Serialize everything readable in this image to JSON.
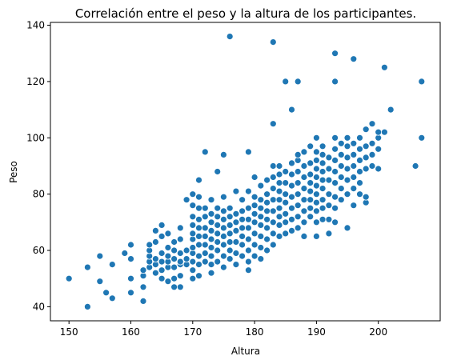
{
  "chart_data": {
    "type": "scatter",
    "title": "Correlación entre el peso y la altura de los participantes.",
    "xlabel": "Altura",
    "ylabel": "Peso",
    "xlim": [
      147,
      210
    ],
    "ylim": [
      35,
      141
    ],
    "xticks": [
      150,
      160,
      170,
      180,
      190,
      200
    ],
    "yticks": [
      40,
      60,
      80,
      100,
      120,
      140
    ],
    "grid": false,
    "marker_color": "#1f77b4",
    "points": [
      [
        150,
        50
      ],
      [
        153,
        40
      ],
      [
        153,
        54
      ],
      [
        155,
        49
      ],
      [
        155,
        58
      ],
      [
        156,
        45
      ],
      [
        157,
        43
      ],
      [
        157,
        55
      ],
      [
        159,
        59
      ],
      [
        160,
        45
      ],
      [
        160,
        50
      ],
      [
        160,
        57
      ],
      [
        160,
        62
      ],
      [
        162,
        42
      ],
      [
        162,
        47
      ],
      [
        162,
        51
      ],
      [
        162,
        53
      ],
      [
        163,
        54
      ],
      [
        163,
        56
      ],
      [
        163,
        58
      ],
      [
        163,
        60
      ],
      [
        163,
        62
      ],
      [
        164,
        52
      ],
      [
        164,
        55
      ],
      [
        164,
        57
      ],
      [
        164,
        63
      ],
      [
        164,
        67
      ],
      [
        165,
        50
      ],
      [
        165,
        53
      ],
      [
        165,
        56
      ],
      [
        165,
        59
      ],
      [
        165,
        65
      ],
      [
        165,
        69
      ],
      [
        166,
        49
      ],
      [
        166,
        54
      ],
      [
        166,
        56
      ],
      [
        166,
        58
      ],
      [
        166,
        61
      ],
      [
        166,
        66
      ],
      [
        167,
        47
      ],
      [
        167,
        50
      ],
      [
        167,
        54
      ],
      [
        167,
        57
      ],
      [
        167,
        60
      ],
      [
        167,
        63
      ],
      [
        168,
        47
      ],
      [
        168,
        51
      ],
      [
        168,
        55
      ],
      [
        168,
        56
      ],
      [
        168,
        59
      ],
      [
        168,
        64
      ],
      [
        168,
        68
      ],
      [
        169,
        55
      ],
      [
        169,
        57
      ],
      [
        169,
        60
      ],
      [
        169,
        78
      ],
      [
        170,
        50
      ],
      [
        170,
        53
      ],
      [
        170,
        56
      ],
      [
        170,
        59
      ],
      [
        170,
        61
      ],
      [
        170,
        64
      ],
      [
        170,
        66
      ],
      [
        170,
        69
      ],
      [
        170,
        72
      ],
      [
        170,
        76
      ],
      [
        170,
        80
      ],
      [
        171,
        51
      ],
      [
        171,
        55
      ],
      [
        171,
        58
      ],
      [
        171,
        62
      ],
      [
        171,
        65
      ],
      [
        171,
        68
      ],
      [
        171,
        71
      ],
      [
        171,
        75
      ],
      [
        171,
        79
      ],
      [
        171,
        85
      ],
      [
        172,
        56
      ],
      [
        172,
        59
      ],
      [
        172,
        62
      ],
      [
        172,
        65
      ],
      [
        172,
        68
      ],
      [
        172,
        72
      ],
      [
        172,
        75
      ],
      [
        172,
        95
      ],
      [
        173,
        52
      ],
      [
        173,
        55
      ],
      [
        173,
        58
      ],
      [
        173,
        61
      ],
      [
        173,
        64
      ],
      [
        173,
        67
      ],
      [
        173,
        70
      ],
      [
        173,
        73
      ],
      [
        173,
        78
      ],
      [
        174,
        56
      ],
      [
        174,
        60
      ],
      [
        174,
        63
      ],
      [
        174,
        66
      ],
      [
        174,
        69
      ],
      [
        174,
        72
      ],
      [
        174,
        75
      ],
      [
        174,
        88
      ],
      [
        175,
        54
      ],
      [
        175,
        58
      ],
      [
        175,
        62
      ],
      [
        175,
        65
      ],
      [
        175,
        68
      ],
      [
        175,
        71
      ],
      [
        175,
        74
      ],
      [
        175,
        79
      ],
      [
        175,
        94
      ],
      [
        176,
        57
      ],
      [
        176,
        60
      ],
      [
        176,
        63
      ],
      [
        176,
        66
      ],
      [
        176,
        69
      ],
      [
        176,
        72
      ],
      [
        176,
        75
      ],
      [
        176,
        136
      ],
      [
        177,
        55
      ],
      [
        177,
        59
      ],
      [
        177,
        63
      ],
      [
        177,
        67
      ],
      [
        177,
        70
      ],
      [
        177,
        73
      ],
      [
        177,
        81
      ],
      [
        178,
        58
      ],
      [
        178,
        62
      ],
      [
        178,
        65
      ],
      [
        178,
        68
      ],
      [
        178,
        71
      ],
      [
        178,
        74
      ],
      [
        178,
        78
      ],
      [
        179,
        53
      ],
      [
        179,
        56
      ],
      [
        179,
        60
      ],
      [
        179,
        64
      ],
      [
        179,
        68
      ],
      [
        179,
        71
      ],
      [
        179,
        75
      ],
      [
        179,
        81
      ],
      [
        179,
        95
      ],
      [
        180,
        58
      ],
      [
        180,
        62
      ],
      [
        180,
        66
      ],
      [
        180,
        70
      ],
      [
        180,
        73
      ],
      [
        180,
        76
      ],
      [
        180,
        79
      ],
      [
        180,
        86
      ],
      [
        181,
        57
      ],
      [
        181,
        61
      ],
      [
        181,
        65
      ],
      [
        181,
        69
      ],
      [
        181,
        72
      ],
      [
        181,
        75
      ],
      [
        181,
        78
      ],
      [
        181,
        83
      ],
      [
        182,
        60
      ],
      [
        182,
        64
      ],
      [
        182,
        68
      ],
      [
        182,
        71
      ],
      [
        182,
        74
      ],
      [
        182,
        77
      ],
      [
        182,
        80
      ],
      [
        182,
        85
      ],
      [
        183,
        62
      ],
      [
        183,
        66
      ],
      [
        183,
        70
      ],
      [
        183,
        74
      ],
      [
        183,
        78
      ],
      [
        183,
        82
      ],
      [
        183,
        86
      ],
      [
        183,
        90
      ],
      [
        183,
        105
      ],
      [
        183,
        134
      ],
      [
        184,
        65
      ],
      [
        184,
        69
      ],
      [
        184,
        72
      ],
      [
        184,
        75
      ],
      [
        184,
        78
      ],
      [
        184,
        81
      ],
      [
        184,
        84
      ],
      [
        184,
        87
      ],
      [
        184,
        90
      ],
      [
        185,
        66
      ],
      [
        185,
        70
      ],
      [
        185,
        73
      ],
      [
        185,
        77
      ],
      [
        185,
        80
      ],
      [
        185,
        84
      ],
      [
        185,
        88
      ],
      [
        185,
        120
      ],
      [
        186,
        67
      ],
      [
        186,
        71
      ],
      [
        186,
        75
      ],
      [
        186,
        79
      ],
      [
        186,
        83
      ],
      [
        186,
        87
      ],
      [
        186,
        91
      ],
      [
        186,
        110
      ],
      [
        187,
        68
      ],
      [
        187,
        72
      ],
      [
        187,
        76
      ],
      [
        187,
        80
      ],
      [
        187,
        84
      ],
      [
        187,
        88
      ],
      [
        187,
        92
      ],
      [
        187,
        94
      ],
      [
        187,
        120
      ],
      [
        188,
        65
      ],
      [
        188,
        70
      ],
      [
        188,
        74
      ],
      [
        188,
        78
      ],
      [
        188,
        82
      ],
      [
        188,
        86
      ],
      [
        188,
        90
      ],
      [
        188,
        95
      ],
      [
        189,
        72
      ],
      [
        189,
        75
      ],
      [
        189,
        78
      ],
      [
        189,
        81
      ],
      [
        189,
        84
      ],
      [
        189,
        87
      ],
      [
        189,
        91
      ],
      [
        189,
        97
      ],
      [
        190,
        65
      ],
      [
        190,
        70
      ],
      [
        190,
        74
      ],
      [
        190,
        77
      ],
      [
        190,
        80
      ],
      [
        190,
        83
      ],
      [
        190,
        86
      ],
      [
        190,
        89
      ],
      [
        190,
        92
      ],
      [
        190,
        95
      ],
      [
        190,
        100
      ],
      [
        191,
        71
      ],
      [
        191,
        75
      ],
      [
        191,
        78
      ],
      [
        191,
        82
      ],
      [
        191,
        85
      ],
      [
        191,
        88
      ],
      [
        191,
        91
      ],
      [
        191,
        94
      ],
      [
        191,
        97
      ],
      [
        192,
        66
      ],
      [
        192,
        71
      ],
      [
        192,
        76
      ],
      [
        192,
        80
      ],
      [
        192,
        85
      ],
      [
        192,
        89
      ],
      [
        192,
        93
      ],
      [
        193,
        70
      ],
      [
        193,
        75
      ],
      [
        193,
        79
      ],
      [
        193,
        84
      ],
      [
        193,
        88
      ],
      [
        193,
        92
      ],
      [
        193,
        96
      ],
      [
        193,
        100
      ],
      [
        193,
        120
      ],
      [
        193,
        130
      ],
      [
        194,
        78
      ],
      [
        194,
        82
      ],
      [
        194,
        86
      ],
      [
        194,
        90
      ],
      [
        194,
        94
      ],
      [
        194,
        98
      ],
      [
        195,
        68
      ],
      [
        195,
        80
      ],
      [
        195,
        85
      ],
      [
        195,
        89
      ],
      [
        195,
        93
      ],
      [
        195,
        97
      ],
      [
        195,
        100
      ],
      [
        196,
        76
      ],
      [
        196,
        82
      ],
      [
        196,
        86
      ],
      [
        196,
        90
      ],
      [
        196,
        94
      ],
      [
        196,
        98
      ],
      [
        196,
        128
      ],
      [
        197,
        80
      ],
      [
        197,
        84
      ],
      [
        197,
        88
      ],
      [
        197,
        92
      ],
      [
        197,
        96
      ],
      [
        197,
        100
      ],
      [
        198,
        77
      ],
      [
        198,
        79
      ],
      [
        198,
        89
      ],
      [
        198,
        93
      ],
      [
        198,
        97
      ],
      [
        198,
        103
      ],
      [
        199,
        90
      ],
      [
        199,
        94
      ],
      [
        199,
        98
      ],
      [
        199,
        105
      ],
      [
        200,
        89
      ],
      [
        200,
        96
      ],
      [
        200,
        100
      ],
      [
        200,
        102
      ],
      [
        201,
        102
      ],
      [
        201,
        125
      ],
      [
        202,
        110
      ],
      [
        206,
        90
      ],
      [
        207,
        100
      ],
      [
        207,
        120
      ]
    ]
  }
}
